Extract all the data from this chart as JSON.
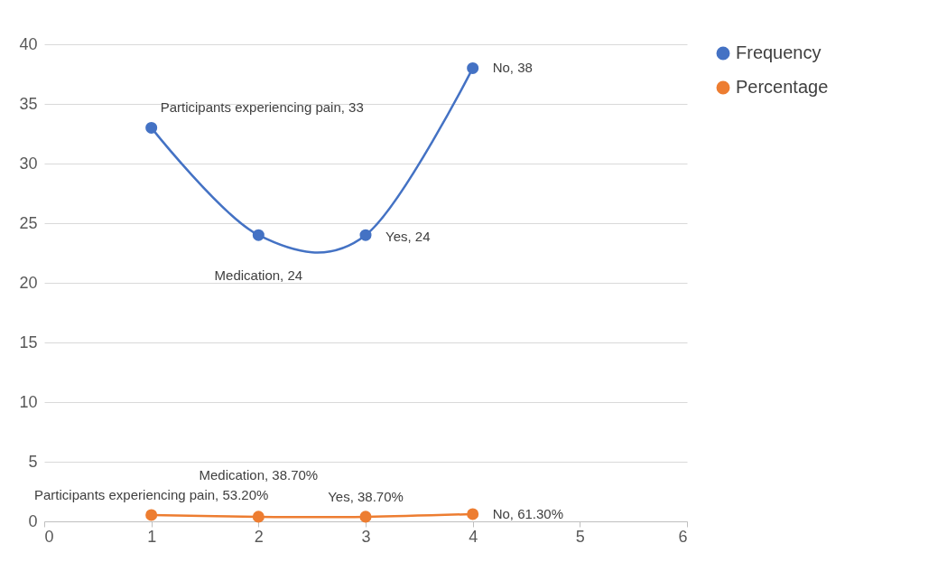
{
  "chart_data": {
    "type": "line",
    "x": [
      1,
      2,
      3,
      4
    ],
    "series": [
      {
        "name": "Frequency",
        "color": "#4472c4",
        "values": [
          33,
          24,
          24,
          38
        ],
        "value_labels": [
          "Participants experiencing pain, 33",
          "Medication, 24",
          "Yes, 24",
          "No, 38"
        ]
      },
      {
        "name": "Percentage",
        "color": "#ed7d31",
        "values": [
          0.532,
          0.387,
          0.387,
          0.613
        ],
        "value_labels": [
          "Participants experiencing pain, 53.20%",
          "Medication, 38.70%",
          "Yes, 38.70%",
          "No, 61.30%"
        ]
      }
    ],
    "xlim": [
      0,
      6
    ],
    "xticks": [
      0,
      1,
      2,
      3,
      4,
      5,
      6
    ],
    "ylim": [
      0,
      40
    ],
    "yticks": [
      0,
      5,
      10,
      15,
      20,
      25,
      30,
      35,
      40
    ],
    "grid": "y",
    "legend": "right",
    "marker": "circle"
  }
}
